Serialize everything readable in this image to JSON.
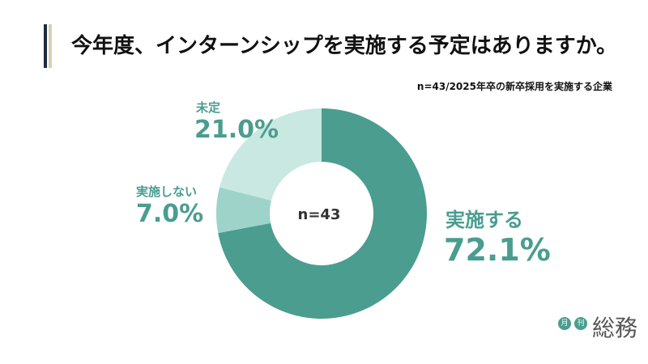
{
  "header": {
    "title": "今年度、インターンシップを実施する予定はありますか。",
    "note": "n=43/2025年卒の新卒採用を実施する企業"
  },
  "colors": {
    "dark": "#4a9d8f",
    "mid": "#9dd3c9",
    "light": "#c9e8e2",
    "label": "#4a9d8f"
  },
  "chart_data": {
    "type": "pie",
    "donut": true,
    "center_label": "n=43",
    "slices": [
      {
        "name": "実施する",
        "value": 72.1,
        "label": "72.1%",
        "color": "#4a9d8f"
      },
      {
        "name": "実施しない",
        "value": 7.0,
        "label": "7.0%",
        "color": "#9dd3c9"
      },
      {
        "name": "未定",
        "value": 21.0,
        "label": "21.0%",
        "color": "#c9e8e2"
      }
    ]
  },
  "logo": {
    "badge_1": "月",
    "badge_2": "刊",
    "word": "総務"
  }
}
